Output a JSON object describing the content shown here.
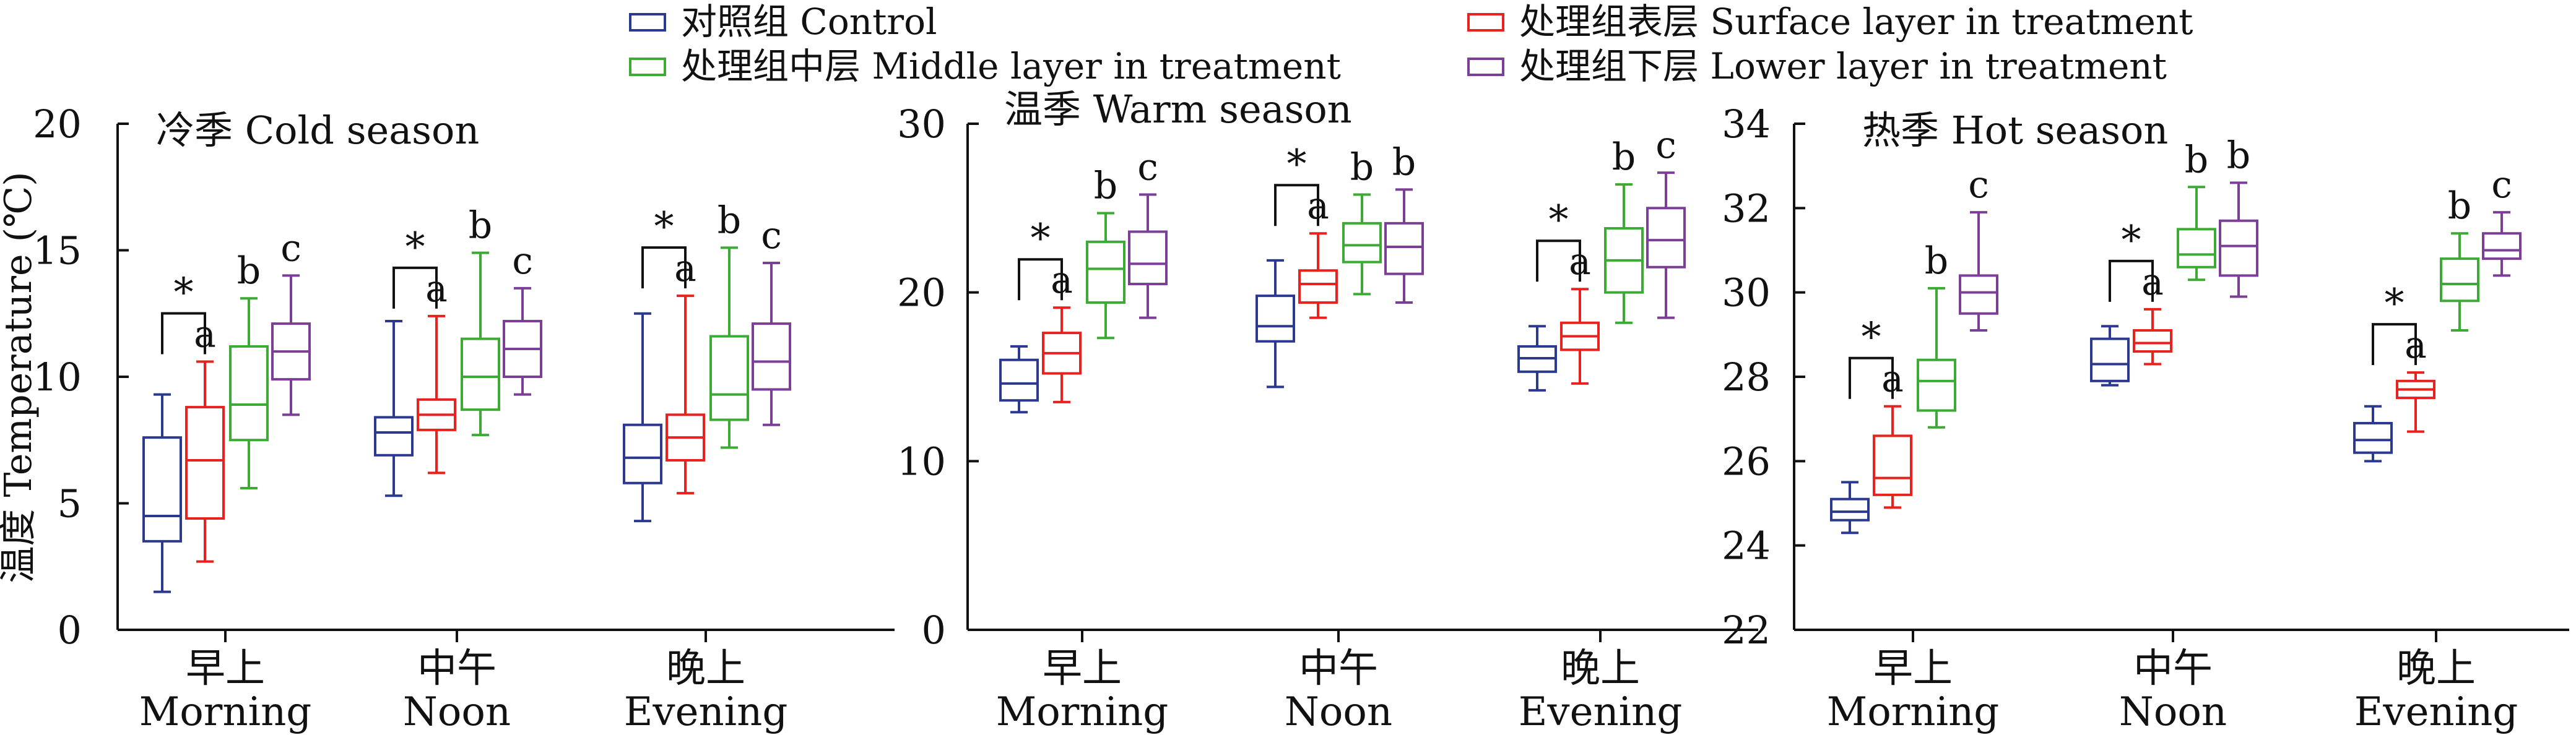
{
  "chart_data": {
    "type": "box",
    "ylabel": "温度 Temperature (℃)",
    "categories": [
      {
        "zh": "早上",
        "en": "Morning"
      },
      {
        "zh": "中午",
        "en": "Noon"
      },
      {
        "zh": "晚上",
        "en": "Evening"
      }
    ],
    "legend": [
      {
        "label": "对照组 Control",
        "color": "#2B3990"
      },
      {
        "label": "处理组表层 Surface layer in treatment",
        "color": "#E8231F"
      },
      {
        "label": "处理组中层 Middle layer in treatment",
        "color": "#3DAA35"
      },
      {
        "label": "处理组下层 Lower layer in treatment",
        "color": "#7B3F98"
      }
    ],
    "panels": [
      {
        "title": "冷季 Cold season",
        "ylim": [
          0,
          20
        ],
        "yticks": [
          0,
          5,
          10,
          15,
          20
        ],
        "groups": [
          {
            "boxes": [
              [
                1.5,
                3.5,
                4.5,
                7.6,
                9.3
              ],
              [
                2.7,
                4.4,
                6.7,
                8.8,
                10.6
              ],
              [
                5.6,
                7.5,
                8.9,
                11.2,
                13.1
              ],
              [
                8.5,
                9.9,
                11.0,
                12.1,
                14.0
              ]
            ],
            "sig": "*",
            "letters": [
              "",
              "a",
              "b",
              "c"
            ]
          },
          {
            "boxes": [
              [
                5.3,
                6.9,
                7.8,
                8.4,
                12.2
              ],
              [
                6.2,
                7.9,
                8.5,
                9.1,
                12.4
              ],
              [
                7.7,
                8.7,
                10.0,
                11.5,
                14.9
              ],
              [
                9.3,
                10.0,
                11.1,
                12.2,
                13.5
              ]
            ],
            "sig": "*",
            "letters": [
              "",
              "a",
              "b",
              "c"
            ]
          },
          {
            "boxes": [
              [
                4.3,
                5.8,
                6.8,
                8.1,
                12.5
              ],
              [
                5.4,
                6.7,
                7.6,
                8.5,
                13.2
              ],
              [
                7.2,
                8.3,
                9.3,
                11.6,
                15.1
              ],
              [
                8.1,
                9.5,
                10.6,
                12.1,
                14.5
              ]
            ],
            "sig": "*",
            "letters": [
              "",
              "a",
              "b",
              "c"
            ]
          }
        ]
      },
      {
        "title": "温季 Warm season",
        "ylim": [
          0,
          30
        ],
        "yticks": [
          0,
          10,
          20,
          30
        ],
        "groups": [
          {
            "boxes": [
              [
                12.9,
                13.6,
                14.6,
                16.0,
                16.8
              ],
              [
                13.5,
                15.2,
                16.4,
                17.6,
                19.1
              ],
              [
                17.3,
                19.4,
                21.4,
                23.0,
                24.7
              ],
              [
                18.5,
                20.5,
                21.7,
                23.6,
                25.8
              ]
            ],
            "sig": "*",
            "letters": [
              "",
              "a",
              "b",
              "c"
            ]
          },
          {
            "boxes": [
              [
                14.4,
                17.1,
                18.0,
                19.8,
                21.9
              ],
              [
                18.5,
                19.4,
                20.5,
                21.3,
                23.5
              ],
              [
                19.9,
                21.8,
                22.8,
                24.1,
                25.8
              ],
              [
                19.4,
                21.1,
                22.7,
                24.1,
                26.1
              ]
            ],
            "sig": "*",
            "letters": [
              "",
              "a",
              "b",
              "b"
            ]
          },
          {
            "boxes": [
              [
                14.2,
                15.3,
                16.1,
                16.8,
                18.0
              ],
              [
                14.6,
                16.6,
                17.4,
                18.2,
                20.2
              ],
              [
                18.2,
                20.0,
                21.9,
                23.8,
                26.4
              ],
              [
                18.5,
                21.5,
                23.1,
                25.0,
                27.1
              ]
            ],
            "sig": "*",
            "letters": [
              "",
              "a",
              "b",
              "c"
            ]
          }
        ]
      },
      {
        "title": "热季 Hot season",
        "ylim": [
          22,
          34
        ],
        "yticks": [
          22,
          24,
          26,
          28,
          30,
          32,
          34
        ],
        "groups": [
          {
            "boxes": [
              [
                24.3,
                24.6,
                24.8,
                25.1,
                25.5
              ],
              [
                24.9,
                25.2,
                25.6,
                26.6,
                27.3
              ],
              [
                26.8,
                27.2,
                27.9,
                28.4,
                30.1
              ],
              [
                29.1,
                29.5,
                30.0,
                30.4,
                31.9
              ]
            ],
            "sig": "*",
            "letters": [
              "",
              "a",
              "b",
              "c"
            ]
          },
          {
            "boxes": [
              [
                27.8,
                27.9,
                28.3,
                28.9,
                29.2
              ],
              [
                28.3,
                28.6,
                28.8,
                29.1,
                29.6
              ],
              [
                30.3,
                30.6,
                30.9,
                31.5,
                32.5
              ],
              [
                29.9,
                30.4,
                31.1,
                31.7,
                32.6
              ]
            ],
            "sig": "*",
            "letters": [
              "",
              "a",
              "b",
              "b"
            ]
          },
          {
            "boxes": [
              [
                26.0,
                26.2,
                26.5,
                26.9,
                27.3
              ],
              [
                26.7,
                27.5,
                27.7,
                27.9,
                28.1
              ],
              [
                29.1,
                29.8,
                30.2,
                30.8,
                31.4
              ],
              [
                30.4,
                30.8,
                31.0,
                31.4,
                31.9
              ]
            ],
            "sig": "*",
            "letters": [
              "",
              "a",
              "b",
              "c"
            ]
          }
        ]
      }
    ]
  }
}
